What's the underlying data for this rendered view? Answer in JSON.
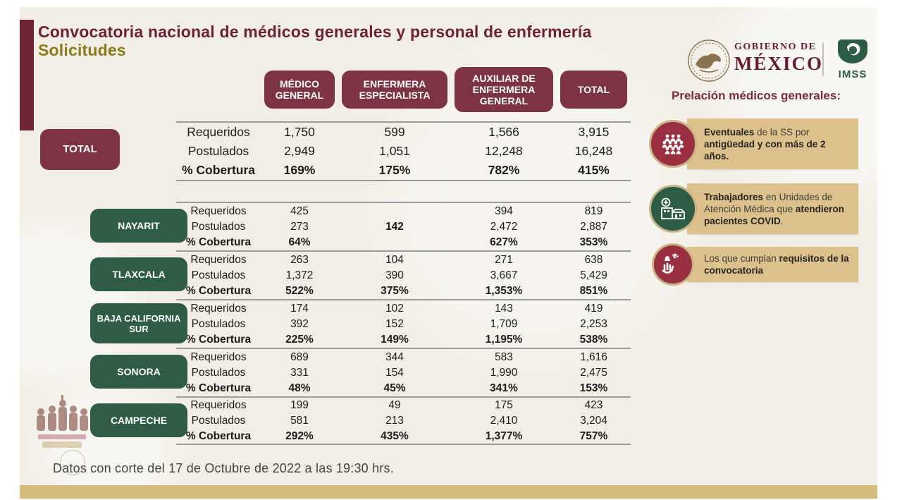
{
  "title": {
    "line1": "Convocatoria nacional de médicos generales y personal de enfermería",
    "line2": "Solicitudes"
  },
  "logos": {
    "gobierno_line1": "GOBIERNO DE",
    "gobierno_line2": "MÉXICO",
    "imss_label": "IMSS"
  },
  "prelacion_heading": "Prelación médicos generales:",
  "callouts": [
    {
      "icon": "people-group-icon",
      "segments": [
        {
          "text": "Eventuales",
          "bold": true
        },
        {
          "text": " de la SS por ",
          "bold": false
        },
        {
          "text": "antigüedad y con  más de 2 años.",
          "bold": true
        }
      ]
    },
    {
      "icon": "medical-unit-icon",
      "segments": [
        {
          "text": "Trabajadores",
          "bold": true
        },
        {
          "text": " en Unidades de Atención Médica que ",
          "bold": false
        },
        {
          "text": "atendieron pacientes COVID",
          "bold": true
        },
        {
          "text": ".",
          "bold": false
        }
      ]
    },
    {
      "icon": "hand-requirements-icon",
      "segments": [
        {
          "text": "Los que cumplan ",
          "bold": false
        },
        {
          "text": "requisitos de la convocatoria",
          "bold": true
        }
      ]
    }
  ],
  "table": {
    "type": "table",
    "column_headers": [
      "MÉDICO GENERAL",
      "ENFERMERA ESPECIALISTA",
      "AUXILIAR DE ENFERMERA GENERAL",
      "TOTAL"
    ],
    "row_labels": [
      "Requeridos",
      "Postulados",
      "% Cobertura"
    ],
    "total_group": {
      "label": "TOTAL",
      "rows": [
        [
          "1,750",
          "599",
          "1,566",
          "3,915"
        ],
        [
          "2,949",
          "1,051",
          "12,248",
          "16,248"
        ],
        [
          "169%",
          "175%",
          "782%",
          "415%"
        ]
      ]
    },
    "state_groups": [
      {
        "label": "NAYARIT",
        "rows": [
          [
            "425",
            "",
            "394",
            "819"
          ],
          [
            "273",
            "142",
            "2,472",
            "2,887"
          ],
          [
            "64%",
            "",
            "627%",
            "353%"
          ]
        ],
        "bold_cells": [
          [
            1,
            1
          ]
        ]
      },
      {
        "label": "TLAXCALA",
        "rows": [
          [
            "263",
            "104",
            "271",
            "638"
          ],
          [
            "1,372",
            "390",
            "3,667",
            "5,429"
          ],
          [
            "522%",
            "375%",
            "1,353%",
            "851%"
          ]
        ]
      },
      {
        "label": "BAJA CALIFORNIA SUR",
        "rows": [
          [
            "174",
            "102",
            "143",
            "419"
          ],
          [
            "392",
            "152",
            "1,709",
            "2,253"
          ],
          [
            "225%",
            "149%",
            "1,195%",
            "538%"
          ]
        ]
      },
      {
        "label": "SONORA",
        "rows": [
          [
            "689",
            "344",
            "583",
            "1,616"
          ],
          [
            "331",
            "154",
            "1,990",
            "2,475"
          ],
          [
            "48%",
            "45%",
            "341%",
            "153%"
          ]
        ]
      },
      {
        "label": "CAMPECHE",
        "rows": [
          [
            "199",
            "49",
            "175",
            "423"
          ],
          [
            "581",
            "213",
            "2,410",
            "3,204"
          ],
          [
            "292%",
            "435%",
            "1,377%",
            "757%"
          ]
        ]
      }
    ]
  },
  "footer": {
    "note": "Datos con corte del 17 de Octubre de 2022 a las 19:30 hrs."
  },
  "colors": {
    "maroon": "#7d3342",
    "title_maroon": "#6d2036",
    "olive": "#8a7c1b",
    "green": "#2e5c44",
    "callout_tan": "#dcc18c",
    "bottom_bar": "#d6ba7e",
    "slide_bg": "#f2eee5"
  }
}
